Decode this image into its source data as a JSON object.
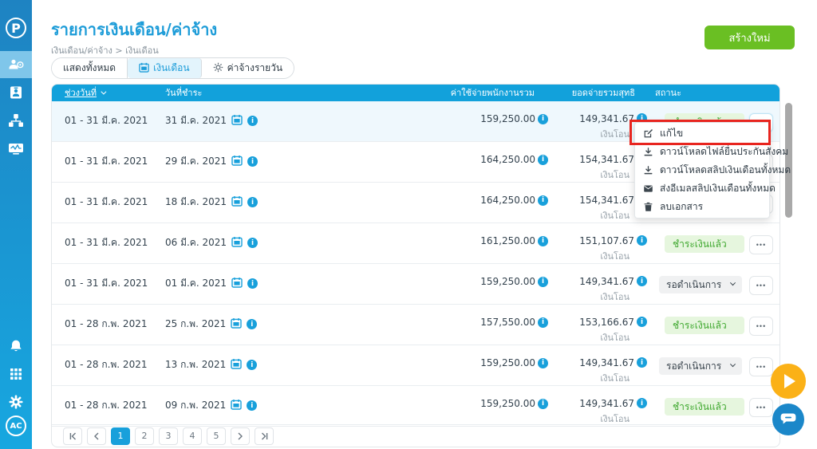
{
  "page": {
    "title": "รายการเงินเดือน/ค่าจ้าง",
    "breadcrumb": "เงินเดือน/ค่าจ้าง > เงินเดือน",
    "create_button": "สร้างใหม่"
  },
  "sidebar": {
    "logo_label": "P",
    "avatar_label": "AC",
    "items": [
      {
        "icon": "employees-icon",
        "active": true
      },
      {
        "icon": "employee-card-icon",
        "active": false
      },
      {
        "icon": "org-chart-icon",
        "active": false
      },
      {
        "icon": "dashboard-icon",
        "active": false
      }
    ],
    "bottom_items": [
      {
        "icon": "bell-icon"
      },
      {
        "icon": "apps-grid-icon"
      },
      {
        "icon": "gear-icon"
      }
    ]
  },
  "tabs": [
    {
      "label": "แสดงทั้งหมด",
      "icon": null,
      "active": false
    },
    {
      "label": "เงินเดือน",
      "icon": "calendar-icon",
      "active": true
    },
    {
      "label": "ค่าจ้างรายวัน",
      "icon": "sun-icon",
      "active": false
    }
  ],
  "table": {
    "columns": [
      "ช่วงวันที่",
      "วันที่ชำระ",
      "ค่าใช้จ่ายพนักงานรวม",
      "ยอดจ่ายรวมสุทธิ",
      "สถานะ"
    ],
    "rows": [
      {
        "range": "01 - 31 มี.ค. 2021",
        "pay_date": "31 มี.ค. 2021",
        "expense": "159,250.00",
        "net": "149,341.67",
        "method": "เงินโอน",
        "status": "ชำระเงินแล้ว",
        "status_type": "paid",
        "highlighted": true,
        "menu_open": true,
        "pay_info": false
      },
      {
        "range": "01 - 31 มี.ค. 2021",
        "pay_date": "29 มี.ค. 2021",
        "expense": "164,250.00",
        "net": "154,341.67",
        "method": "เงินโอน",
        "status": "",
        "status_type": "hidden",
        "highlighted": false,
        "menu_open": false,
        "pay_info": false
      },
      {
        "range": "01 - 31 มี.ค. 2021",
        "pay_date": "18 มี.ค. 2021",
        "expense": "164,250.00",
        "net": "154,341.67",
        "method": "เงินโอน",
        "status": "",
        "status_type": "hidden",
        "highlighted": false,
        "menu_open": false,
        "pay_info": false
      },
      {
        "range": "01 - 31 มี.ค. 2021",
        "pay_date": "06 มี.ค. 2021",
        "expense": "161,250.00",
        "net": "151,107.67",
        "method": "เงินโอน",
        "status": "ชำระเงินแล้ว",
        "status_type": "paid",
        "highlighted": false,
        "menu_open": false,
        "pay_info": false
      },
      {
        "range": "01 - 31 มี.ค. 2021",
        "pay_date": "01 มี.ค. 2021",
        "expense": "159,250.00",
        "net": "149,341.67",
        "method": "เงินโอน",
        "status": "รอดำเนินการ",
        "status_type": "pending",
        "highlighted": false,
        "menu_open": false,
        "pay_info": false
      },
      {
        "range": "01 - 28 ก.พ. 2021",
        "pay_date": "25 ก.พ. 2021",
        "expense": "157,550.00",
        "net": "153,166.67",
        "method": "เงินโอน",
        "status": "ชำระเงินแล้ว",
        "status_type": "paid",
        "highlighted": false,
        "menu_open": false,
        "pay_info": true
      },
      {
        "range": "01 - 28 ก.พ. 2021",
        "pay_date": "13 ก.พ. 2021",
        "expense": "159,250.00",
        "net": "149,341.67",
        "method": "เงินโอน",
        "status": "รอดำเนินการ",
        "status_type": "pending",
        "highlighted": false,
        "menu_open": false,
        "pay_info": false
      },
      {
        "range": "01 - 28 ก.พ. 2021",
        "pay_date": "09 ก.พ. 2021",
        "expense": "159,250.00",
        "net": "149,341.67",
        "method": "เงินโอน",
        "status": "ชำระเงินแล้ว",
        "status_type": "paid",
        "highlighted": false,
        "menu_open": false,
        "pay_info": false
      }
    ]
  },
  "context_menu": {
    "items": [
      {
        "label": "แก้ไข",
        "icon": "edit",
        "highlighted": true
      },
      {
        "label": "ดาวน์โหลดไฟล์ยื่นประกันสังคม",
        "icon": "download",
        "highlighted": false
      },
      {
        "label": "ดาวน์โหลดสลิปเงินเดือนทั้งหมด",
        "icon": "download",
        "highlighted": false
      },
      {
        "label": "ส่งอีเมลสลิปเงินเดือนทั้งหมด",
        "icon": "email",
        "highlighted": false
      },
      {
        "label": "ลบเอกสาร",
        "icon": "trash",
        "highlighted": false
      }
    ]
  },
  "pagination": {
    "pages": [
      "1",
      "2",
      "3",
      "4",
      "5"
    ],
    "active_page": "1"
  },
  "colors": {
    "accent_blue": "#18a0db",
    "table_header_blue": "#12a1db",
    "title_blue": "#1d9cd8",
    "create_button_green": "#6abf23",
    "paid_badge_bg": "#e6f6de",
    "paid_badge_text": "#3fa82f",
    "pending_dropdown_bg": "#f0f1f2",
    "highlight_box_red": "#e8251f",
    "fab_play_orange": "#fbb117",
    "fab_chat_blue": "#1b87c9",
    "sidebar_blue_top": "#1e83c2",
    "sidebar_blue_bottom": "#17a7e0",
    "row_highlight": "#eff8fd"
  }
}
